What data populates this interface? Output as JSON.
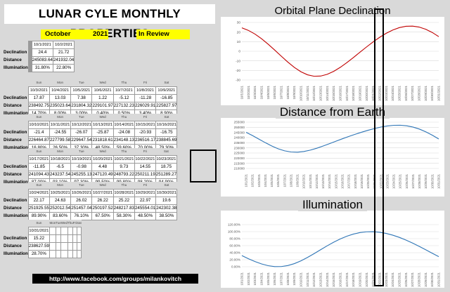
{
  "title": "LUNAR CYLE MONTHLY PROPERTIES",
  "month": "October",
  "year": "2021",
  "status": "In Review",
  "row_labels": [
    "Declination",
    "Distance",
    "Illumination"
  ],
  "day_names": [
    "Sun",
    "Mon",
    "Tue",
    "Wed",
    "Thu",
    "Fri",
    "Sat"
  ],
  "weeks": [
    {
      "dates": [
        "",
        "",
        "",
        "",
        "",
        "10/1/2021",
        "10/2/2021"
      ],
      "declination": [
        "",
        "",
        "",
        "",
        "",
        "24.4",
        "21.72"
      ],
      "distance": [
        "",
        "",
        "",
        "",
        "",
        "245083.64",
        "241932.04"
      ],
      "illumination": [
        "",
        "",
        "",
        "",
        "",
        "31.80%",
        "22.80%"
      ]
    },
    {
      "dates": [
        "10/3/2021",
        "10/4/2021",
        "10/5/2021",
        "10/6/2021",
        "10/7/2021",
        "10/8/2021",
        "10/9/2021"
      ],
      "declination": [
        "17.87",
        "13.03",
        "7.38",
        "1.22",
        "-5.12",
        "-11.28",
        "-16.85"
      ],
      "distance": [
        "238492.75",
        "235023.64",
        "231804.32",
        "229101.97",
        "227132.23",
        "226029.91",
        "225827.97"
      ],
      "illumination": [
        "14.70%",
        "8.00%",
        "3.00%",
        "0.40%",
        "0.50%",
        "3.40%",
        "8.90%"
      ]
    },
    {
      "dates": [
        "10/10/2021",
        "10/11/2021",
        "10/12/2021",
        "10/13/2021",
        "10/14/2021",
        "10/15/2021",
        "10/16/2021"
      ],
      "declination": [
        "-21.4",
        "-24.55",
        "-26.07",
        "-25.87",
        "-24.08",
        "-20.93",
        "-16.75"
      ],
      "distance": [
        "226464.87",
        "227799.58",
        "229647.54",
        "231818.61",
        "234148.13",
        "236516.17",
        "238845.69"
      ],
      "illumination": [
        "16.80%",
        "26.50%",
        "37.30%",
        "48.50%",
        "59.60%",
        "70.00%",
        "79.30%"
      ]
    },
    {
      "dates": [
        "10/17/2021",
        "10/18/2021",
        "10/19/2021",
        "10/20/2021",
        "10/21/2021",
        "10/22/2021",
        "10/23/2021"
      ],
      "declination": [
        "-11.85",
        "-6.5",
        "-0.98",
        "4.48",
        "9.73",
        "14.55",
        "18.75"
      ],
      "distance": [
        "241094.43",
        "243237.54",
        "245255.13",
        "247120.49",
        "248793.22",
        "250211.19",
        "251289.27"
      ],
      "illumination": [
        "87.00%",
        "93.10%",
        "97.30%",
        "99.50%",
        "99.80%",
        "98.20%",
        "94.90%"
      ]
    },
    {
      "dates": [
        "10/24/2021",
        "10/25/2021",
        "10/26/2021",
        "10/27/2021",
        "10/28/2021",
        "10/29/2021",
        "10/30/2021"
      ],
      "declination": [
        "22.17",
        "24.63",
        "26.02",
        "26.22",
        "25.22",
        "22.97",
        "19.6"
      ],
      "distance": [
        "251925.55",
        "252012.54",
        "251457.04",
        "250197.52",
        "248217.83",
        "245554.01",
        "242302.38"
      ],
      "illumination": [
        "89.90%",
        "83.60%",
        "76.10%",
        "67.50%",
        "58.30%",
        "48.50%",
        "38.50%"
      ]
    },
    {
      "dates": [
        "10/31/2021",
        "",
        "",
        "",
        "",
        "",
        ""
      ],
      "declination": [
        "15.22",
        "",
        "",
        "",
        "",
        "",
        ""
      ],
      "distance": [
        "238627.59",
        "",
        "",
        "",
        "",
        "",
        ""
      ],
      "illumination": [
        "28.70%",
        "",
        "",
        "",
        "",
        "",
        ""
      ]
    }
  ],
  "footer_link": "http://www.facebook.com/groups/milankovitch",
  "chart_data": [
    {
      "type": "line",
      "title": "Orbital Plane Declination",
      "categories": [
        "10/1/2021",
        "10/2/2021",
        "10/3/2021",
        "10/4/2021",
        "10/5/2021",
        "10/6/2021",
        "10/7/2021",
        "10/8/2021",
        "10/9/2021",
        "10/10/2021",
        "10/11/2021",
        "10/12/2021",
        "10/13/2021",
        "10/14/2021",
        "10/15/2021",
        "10/16/2021",
        "10/17/2021",
        "10/18/2021",
        "10/19/2021",
        "10/20/2021",
        "10/21/2021",
        "10/22/2021",
        "10/23/2021",
        "10/24/2021",
        "10/25/2021",
        "10/26/2021",
        "10/27/2021",
        "10/28/2021",
        "10/29/2021",
        "10/30/2021",
        "10/31/2021"
      ],
      "values": [
        24.4,
        21.72,
        17.87,
        13.03,
        7.38,
        1.22,
        -5.12,
        -11.28,
        -16.85,
        -21.4,
        -24.55,
        -26.07,
        -25.87,
        -24.08,
        -20.93,
        -16.75,
        -11.85,
        -6.5,
        -0.98,
        4.48,
        9.73,
        14.55,
        18.75,
        22.17,
        24.63,
        26.02,
        26.22,
        25.22,
        22.97,
        19.6,
        15.22
      ],
      "ylim": [
        -30,
        30
      ],
      "yticks": [
        "30",
        "20",
        "10",
        "0",
        "-10",
        "-20",
        "-30"
      ],
      "color": "#c00000",
      "grid": true
    },
    {
      "type": "line",
      "title": "Distance from Earth",
      "categories": [
        "10/1/2021",
        "10/2/2021",
        "10/3/2021",
        "10/4/2021",
        "10/5/2021",
        "10/6/2021",
        "10/7/2021",
        "10/8/2021",
        "10/9/2021",
        "10/10/2021",
        "10/11/2021",
        "10/12/2021",
        "10/13/2021",
        "10/14/2021",
        "10/15/2021",
        "10/16/2021",
        "10/17/2021",
        "10/18/2021",
        "10/19/2021",
        "10/20/2021",
        "10/21/2021",
        "10/22/2021",
        "10/23/2021",
        "10/24/2021",
        "10/25/2021",
        "10/26/2021",
        "10/27/2021",
        "10/28/2021",
        "10/29/2021",
        "10/30/2021",
        "10/31/2021"
      ],
      "values": [
        245083.64,
        241932.04,
        238492.75,
        235023.64,
        231804.32,
        229101.97,
        227132.23,
        226029.91,
        225827.97,
        226464.87,
        227799.58,
        229647.54,
        231818.61,
        234148.13,
        236516.17,
        238845.69,
        241094.43,
        243237.54,
        245255.13,
        247120.49,
        248793.22,
        250211.19,
        251289.27,
        251925.55,
        252012.54,
        251457.04,
        250197.52,
        248217.83,
        245554.01,
        242302.38,
        238627.59
      ],
      "ylim": [
        210000,
        255000
      ],
      "yticks": [
        "255000",
        "250000",
        "245000",
        "240000",
        "235000",
        "230000",
        "225000",
        "220000",
        "215000",
        "210000"
      ],
      "color": "#2e75b6",
      "grid": true
    },
    {
      "type": "line",
      "title": "Illumination",
      "categories": [
        "10/1/2021",
        "10/2/2021",
        "10/3/2021",
        "10/4/2021",
        "10/5/2021",
        "10/6/2021",
        "10/7/2021",
        "10/8/2021",
        "10/9/2021",
        "10/10/2021",
        "10/11/2021",
        "10/12/2021",
        "10/13/2021",
        "10/14/2021",
        "10/15/2021",
        "10/16/2021",
        "10/17/2021",
        "10/18/2021",
        "10/19/2021",
        "10/20/2021",
        "10/21/2021",
        "10/22/2021",
        "10/23/2021",
        "10/24/2021",
        "10/25/2021",
        "10/26/2021",
        "10/27/2021",
        "10/28/2021",
        "10/29/2021",
        "10/30/2021",
        "10/31/2021"
      ],
      "values": [
        31.8,
        22.8,
        14.7,
        8.0,
        3.0,
        0.4,
        0.5,
        3.4,
        8.9,
        16.8,
        26.5,
        37.3,
        48.5,
        59.6,
        70.0,
        79.3,
        87.0,
        93.1,
        97.3,
        99.5,
        99.8,
        98.2,
        94.9,
        89.9,
        83.6,
        76.1,
        67.5,
        58.3,
        48.5,
        38.5,
        28.7
      ],
      "ylim": [
        0,
        120
      ],
      "yticks": [
        "120.00%",
        "100.00%",
        "80.00%",
        "60.00%",
        "40.00%",
        "20.00%",
        "0.00%"
      ],
      "color": "#2e75b6",
      "grid": true
    }
  ]
}
